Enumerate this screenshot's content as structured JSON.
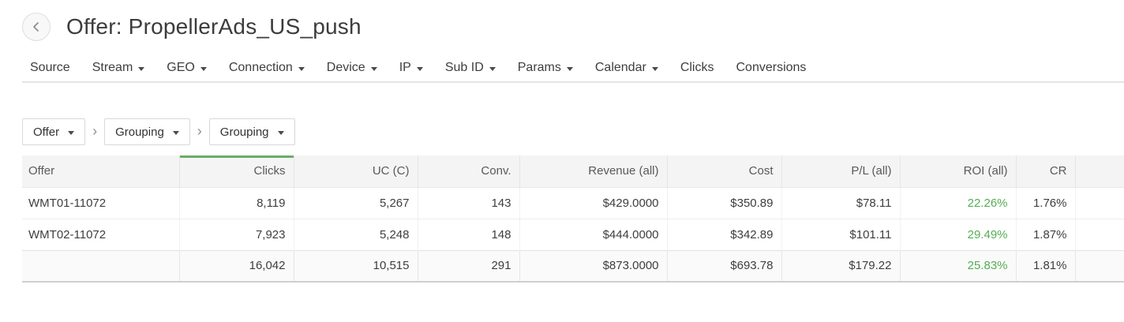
{
  "page": {
    "title": "Offer: PropellerAds_US_push"
  },
  "nav": {
    "items": [
      {
        "label": "Source",
        "dropdown": false
      },
      {
        "label": "Stream",
        "dropdown": true
      },
      {
        "label": "GEO",
        "dropdown": true
      },
      {
        "label": "Connection",
        "dropdown": true
      },
      {
        "label": "Device",
        "dropdown": true
      },
      {
        "label": "IP",
        "dropdown": true
      },
      {
        "label": "Sub ID",
        "dropdown": true
      },
      {
        "label": "Params",
        "dropdown": true
      },
      {
        "label": "Calendar",
        "dropdown": true
      },
      {
        "label": "Clicks",
        "dropdown": false
      },
      {
        "label": "Conversions",
        "dropdown": false
      }
    ]
  },
  "grouping": {
    "selects": [
      "Offer",
      "Grouping",
      "Grouping"
    ],
    "separator_icon": "›"
  },
  "table": {
    "columns": [
      {
        "key": "offer",
        "label": "Offer"
      },
      {
        "key": "clicks",
        "label": "Clicks"
      },
      {
        "key": "uc",
        "label": "UC (C)"
      },
      {
        "key": "conv",
        "label": "Conv."
      },
      {
        "key": "revenue",
        "label": "Revenue (all)"
      },
      {
        "key": "cost",
        "label": "Cost"
      },
      {
        "key": "pl",
        "label": "P/L (all)"
      },
      {
        "key": "roi",
        "label": "ROI (all)"
      },
      {
        "key": "cr",
        "label": "CR"
      }
    ],
    "sorted_column_key": "clicks",
    "rows": [
      {
        "offer": "WMT01-11072",
        "clicks": "8,119",
        "uc": "5,267",
        "conv": "143",
        "revenue": "$429.0000",
        "cost": "$350.89",
        "pl": "$78.11",
        "roi": "22.26%",
        "cr": "1.76%"
      },
      {
        "offer": "WMT02-11072",
        "clicks": "7,923",
        "uc": "5,248",
        "conv": "148",
        "revenue": "$444.0000",
        "cost": "$342.89",
        "pl": "$101.11",
        "roi": "29.49%",
        "cr": "1.87%"
      }
    ],
    "totals": {
      "offer": "",
      "clicks": "16,042",
      "uc": "10,515",
      "conv": "291",
      "revenue": "$873.0000",
      "cost": "$693.78",
      "pl": "$179.22",
      "roi": "25.83%",
      "cr": "1.81%"
    }
  },
  "colors": {
    "roi_green": "#54ae54",
    "sort_bar_green": "#6cab6c"
  }
}
